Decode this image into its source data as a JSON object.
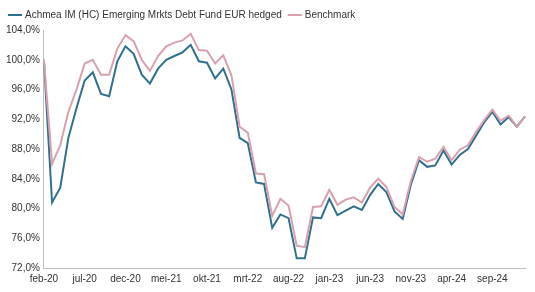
{
  "chart_data": {
    "type": "line",
    "categories": [
      "feb-20",
      null,
      null,
      null,
      null,
      "jul-20",
      null,
      null,
      null,
      null,
      "dec-20",
      null,
      null,
      null,
      null,
      "mei-21",
      null,
      null,
      null,
      null,
      "okt-21",
      null,
      null,
      null,
      null,
      "mrt-22",
      null,
      null,
      null,
      null,
      "aug-22",
      null,
      null,
      null,
      null,
      "jan-23",
      null,
      null,
      null,
      null,
      "jun-23",
      null,
      null,
      null,
      null,
      "nov-23",
      null,
      null,
      null,
      null,
      "apr-24",
      null,
      null,
      null,
      null,
      "sep-24",
      null,
      null,
      null,
      null
    ],
    "series": [
      {
        "name": "Achmea IM (HC) Emerging Mrkts Debt Fund EUR hedged",
        "color": "#30708f",
        "values": [
          100,
          80.8,
          82.8,
          89.5,
          93.5,
          97.2,
          98.3,
          95.4,
          95.1,
          99.8,
          101.8,
          100.8,
          98,
          96.8,
          98.8,
          100,
          100.5,
          101,
          102,
          99.8,
          99.6,
          97.5,
          98.8,
          96,
          89.5,
          88.8,
          83.5,
          83.3,
          77.4,
          79.2,
          78.7,
          73.3,
          73.3,
          78.8,
          78.7,
          81.3,
          79.1,
          79.7,
          80.3,
          79.8,
          81.8,
          83.3,
          82.2,
          79.6,
          78.6,
          83.2,
          86.5,
          85.6,
          85.8,
          87.8,
          85.9,
          87.2,
          88,
          89.8,
          91.6,
          93,
          91.3,
          92.3,
          91,
          92.4
        ]
      },
      {
        "name": "Benchmark",
        "color": "#d9a0ad",
        "values": [
          100,
          86,
          88.5,
          93,
          96,
          99.5,
          100,
          98,
          98,
          101.5,
          103.3,
          102.5,
          100,
          98.5,
          100.5,
          101.8,
          102.3,
          102.6,
          103.5,
          101.3,
          101.2,
          99.5,
          100.6,
          97.9,
          91,
          90.2,
          84.7,
          84.6,
          79,
          81.3,
          80.4,
          75,
          74.8,
          80.2,
          80.3,
          82.5,
          80.5,
          81.2,
          81.5,
          80.8,
          82.8,
          84,
          82.9,
          80.2,
          79.2,
          83.7,
          86.9,
          86.3,
          86.7,
          88.3,
          86.5,
          87.9,
          88.5,
          90.3,
          91.9,
          93.3,
          91.8,
          92.5,
          91,
          92.4
        ]
      }
    ],
    "ylim": [
      72,
      104
    ],
    "yticks": [
      {
        "value": 72,
        "label": "72,0%"
      },
      {
        "value": 76,
        "label": "76,0%"
      },
      {
        "value": 80,
        "label": "80,0%"
      },
      {
        "value": 84,
        "label": "84,0%"
      },
      {
        "value": 88,
        "label": "88,0%"
      },
      {
        "value": 92,
        "label": "92,0%"
      },
      {
        "value": 96,
        "label": "96,0%"
      },
      {
        "value": 100,
        "label": "100,0%"
      },
      {
        "value": 104,
        "label": "104,0%"
      }
    ],
    "grid": false,
    "legend": "top"
  }
}
